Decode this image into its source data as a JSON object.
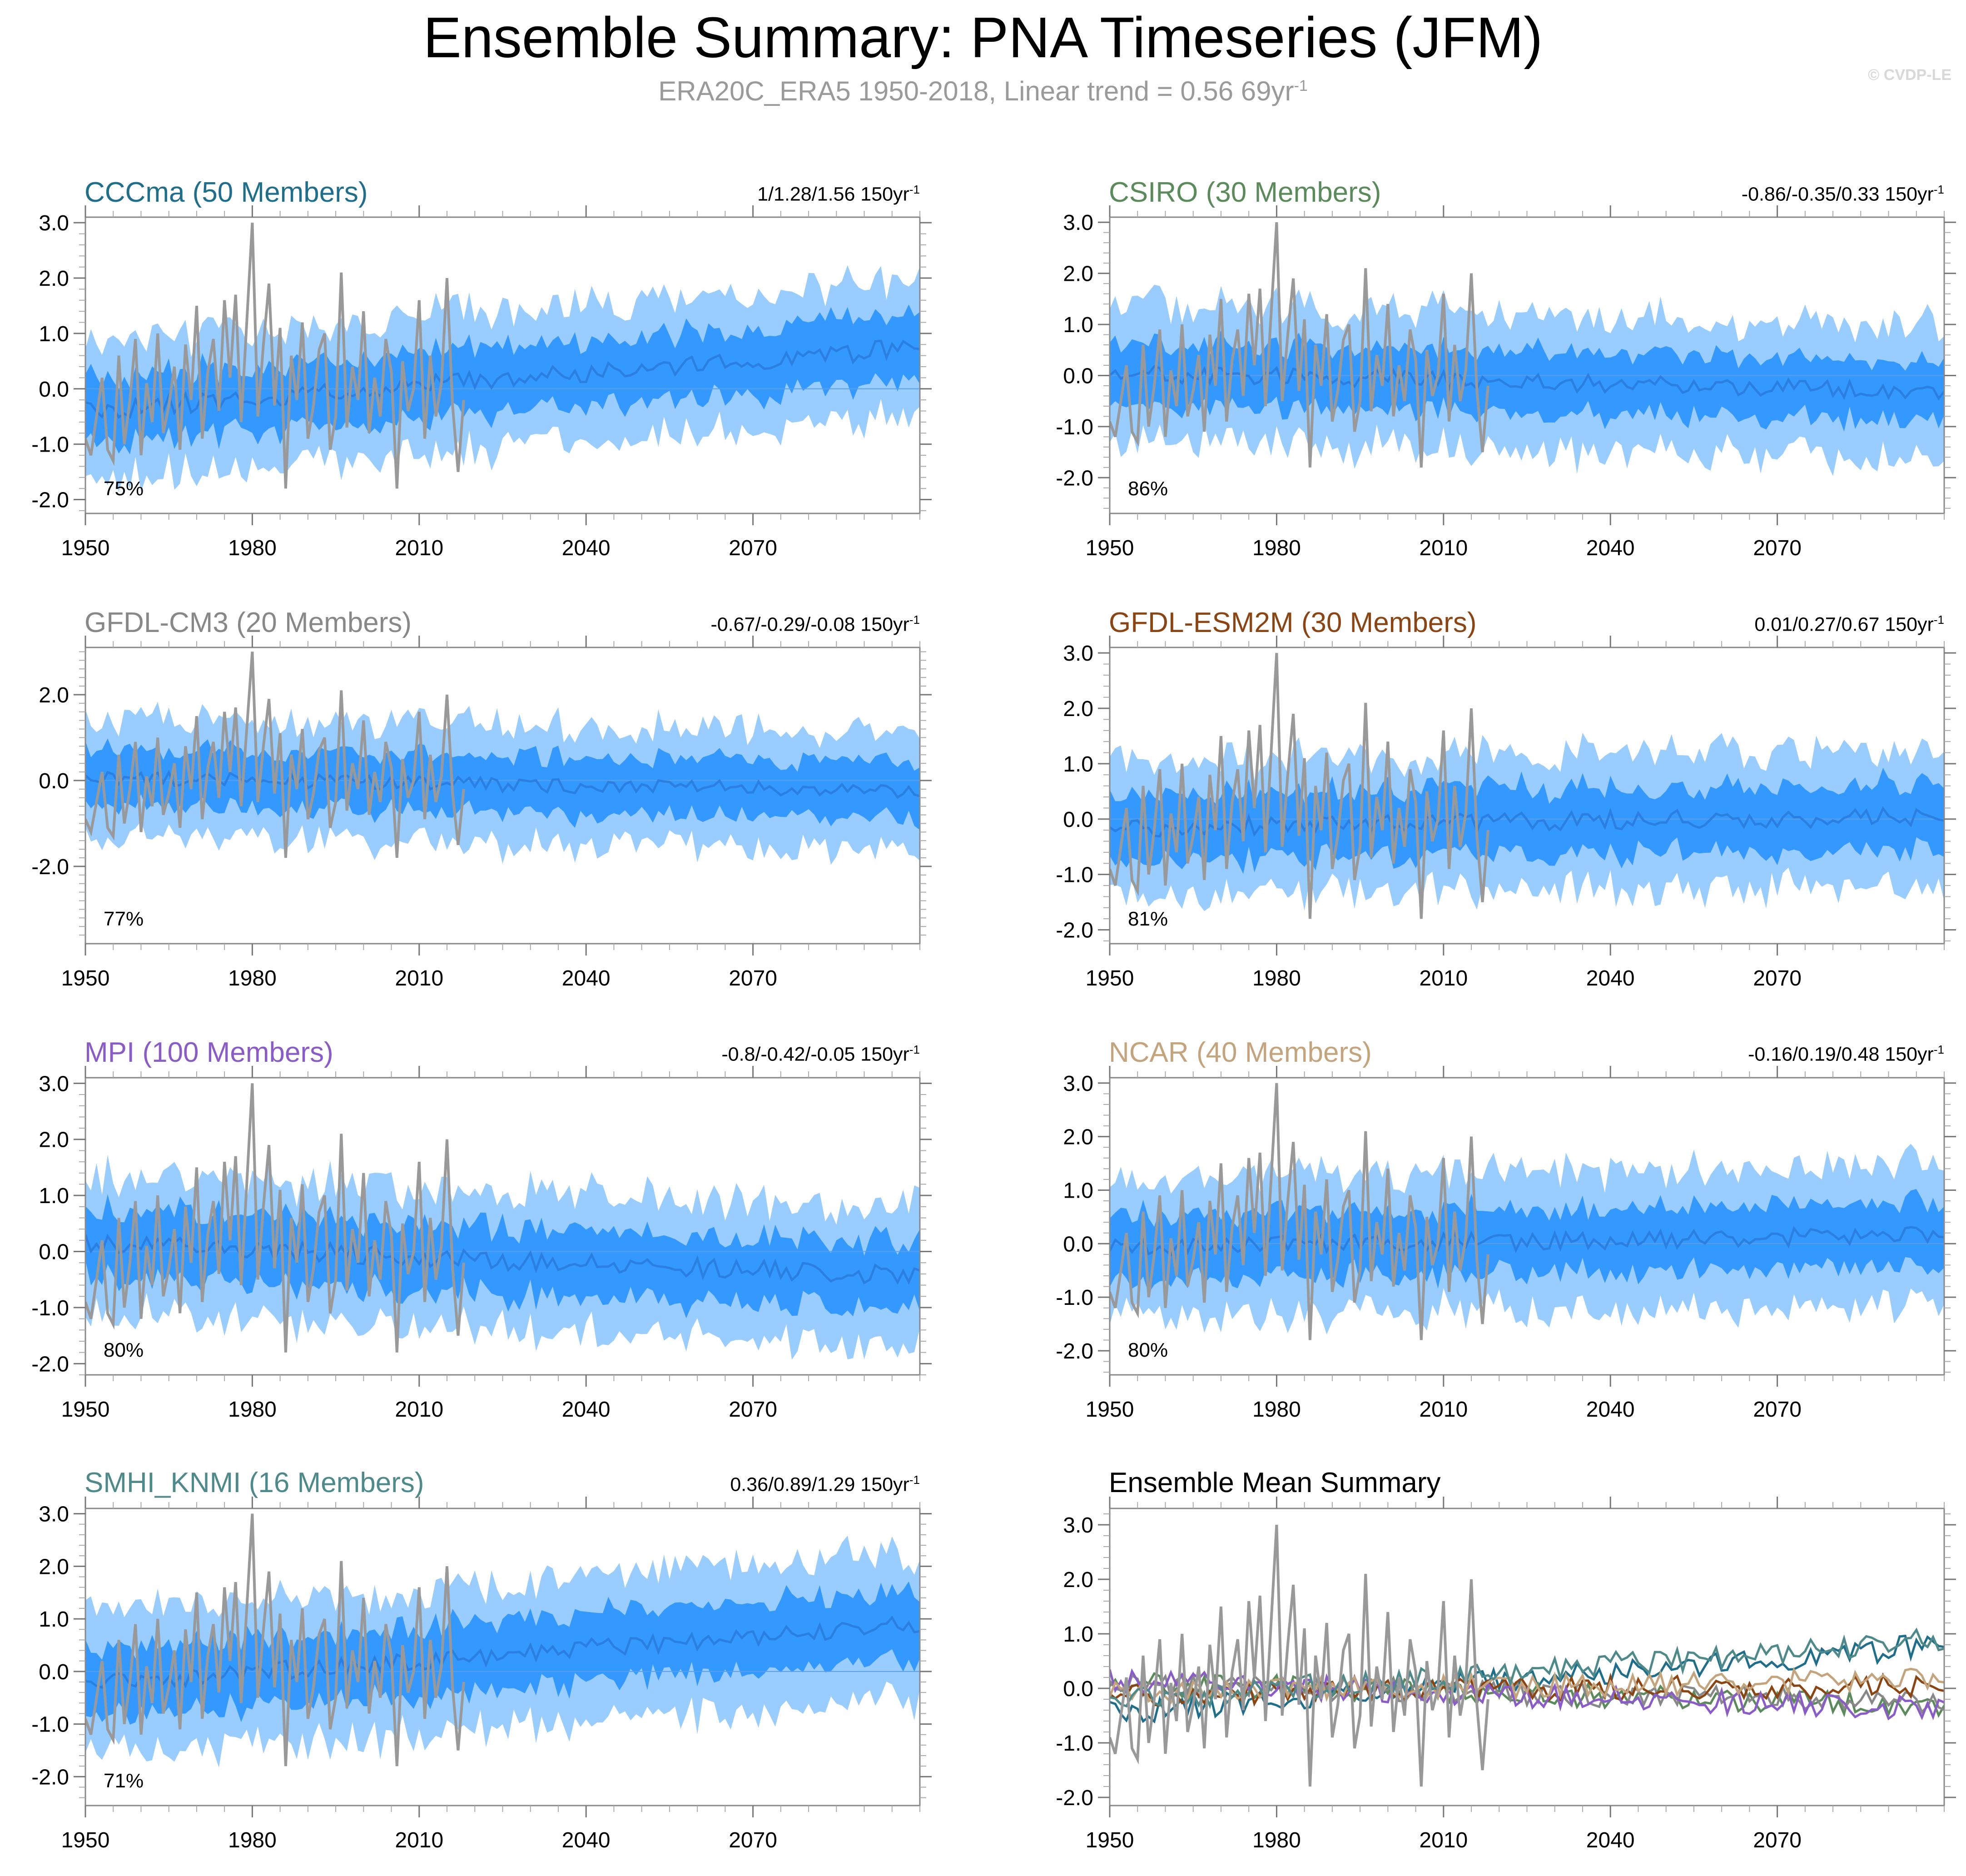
{
  "title": "Ensemble Summary: PNA Timeseries (JFM)",
  "subtitle": {
    "text": "ERA20C_ERA5 1950-2018, Linear trend = 0.56 69yr",
    "unit_exponent": "-1"
  },
  "watermark": "© CVDP-LE",
  "colors": {
    "inner_band": "#3399ff",
    "outer_band": "#99ccff",
    "ensemble_mean": "#2a7fe0",
    "observations": "#999999",
    "frame": "#888888"
  },
  "chart_data": [
    {
      "type": "area",
      "title": "CCCma (50 Members)",
      "title_color": "#1f6e8c",
      "trend_text": "1/1.28/1.56 150yr",
      "trend_exponent": "-1",
      "percent_label": "75%",
      "xlim": [
        1950,
        2100
      ],
      "ylim": [
        -2.25,
        3.1
      ],
      "yticks": [
        "3.0",
        "2.0",
        "1.0",
        "0.0",
        "-1.0",
        "-2.0"
      ],
      "ytick_values": [
        3,
        2,
        1,
        0,
        -1,
        -2
      ],
      "xticks": [
        "1950",
        "1980",
        "2010",
        "2040",
        "2070"
      ],
      "mean_start": -0.4,
      "mean_end": 0.75,
      "inner_half": 0.6,
      "outer_half": 1.2,
      "seed": 11
    },
    {
      "type": "area",
      "title": "CSIRO (30 Members)",
      "title_color": "#5b8a5b",
      "trend_text": "-0.86/-0.35/0.33 150yr",
      "trend_exponent": "-1",
      "percent_label": "86%",
      "xlim": [
        1950,
        2100
      ],
      "ylim": [
        -2.7,
        3.1
      ],
      "yticks": [
        "3.0",
        "2.0",
        "1.0",
        "0.0",
        "-1.0",
        "-2.0"
      ],
      "ytick_values": [
        3,
        2,
        1,
        0,
        -1,
        -2
      ],
      "xticks": [
        "1950",
        "1980",
        "2010",
        "2040",
        "2070"
      ],
      "mean_start": 0.05,
      "mean_end": -0.3,
      "inner_half": 0.6,
      "outer_half": 1.3,
      "seed": 23
    },
    {
      "type": "area",
      "title": "GFDL-CM3 (20 Members)",
      "title_color": "#888888",
      "trend_text": "-0.67/-0.29/-0.08 150yr",
      "trend_exponent": "-1",
      "percent_label": "77%",
      "xlim": [
        1950,
        2100
      ],
      "ylim": [
        -3.8,
        3.1
      ],
      "yticks": [
        "2.0",
        "0.0",
        "-2.0"
      ],
      "ytick_values": [
        2,
        0,
        -2
      ],
      "xticks": [
        "1950",
        "1980",
        "2010",
        "2040",
        "2070"
      ],
      "mean_start": 0.05,
      "mean_end": -0.25,
      "inner_half": 0.65,
      "outer_half": 1.35,
      "seed": 37
    },
    {
      "type": "area",
      "title": "GFDL-ESM2M (30 Members)",
      "title_color": "#8b4513",
      "trend_text": "0.01/0.27/0.67 150yr",
      "trend_exponent": "-1",
      "percent_label": "81%",
      "xlim": [
        1950,
        2100
      ],
      "ylim": [
        -2.25,
        3.1
      ],
      "yticks": [
        "3.0",
        "2.0",
        "1.0",
        "0.0",
        "-1.0",
        "-2.0"
      ],
      "ytick_values": [
        3,
        2,
        1,
        0,
        -1,
        -2
      ],
      "xticks": [
        "1950",
        "1980",
        "2010",
        "2040",
        "2070"
      ],
      "mean_start": -0.15,
      "mean_end": 0.05,
      "inner_half": 0.6,
      "outer_half": 1.2,
      "seed": 41
    },
    {
      "type": "area",
      "title": "MPI (100 Members)",
      "title_color": "#8a5cc8",
      "trend_text": "-0.8/-0.42/-0.05 150yr",
      "trend_exponent": "-1",
      "percent_label": "80%",
      "xlim": [
        1950,
        2100
      ],
      "ylim": [
        -2.2,
        3.1
      ],
      "yticks": [
        "3.0",
        "2.0",
        "1.0",
        "0.0",
        "-1.0",
        "-2.0"
      ],
      "ytick_values": [
        3,
        2,
        1,
        0,
        -1,
        -2
      ],
      "xticks": [
        "1950",
        "1980",
        "2010",
        "2040",
        "2070"
      ],
      "mean_start": 0.15,
      "mean_end": -0.45,
      "inner_half": 0.6,
      "outer_half": 1.2,
      "seed": 53
    },
    {
      "type": "area",
      "title": "NCAR (40 Members)",
      "title_color": "#c4a47c",
      "trend_text": "-0.16/0.19/0.48 150yr",
      "trend_exponent": "-1",
      "percent_label": "80%",
      "xlim": [
        1950,
        2100
      ],
      "ylim": [
        -2.45,
        3.1
      ],
      "yticks": [
        "3.0",
        "2.0",
        "1.0",
        "0.0",
        "-1.0",
        "-2.0"
      ],
      "ytick_values": [
        3,
        2,
        1,
        0,
        -1,
        -2
      ],
      "xticks": [
        "1950",
        "1980",
        "2010",
        "2040",
        "2070"
      ],
      "mean_start": -0.05,
      "mean_end": 0.15,
      "inner_half": 0.6,
      "outer_half": 1.25,
      "seed": 67
    },
    {
      "type": "area",
      "title": "SMHI_KNMI (16 Members)",
      "title_color": "#4f8a8b",
      "trend_text": "0.36/0.89/1.29 150yr",
      "trend_exponent": "-1",
      "percent_label": "71%",
      "xlim": [
        1950,
        2100
      ],
      "ylim": [
        -2.55,
        3.1
      ],
      "yticks": [
        "3.0",
        "2.0",
        "1.0",
        "0.0",
        "-1.0",
        "-2.0"
      ],
      "ytick_values": [
        3,
        2,
        1,
        0,
        -1,
        -2
      ],
      "xticks": [
        "1950",
        "1980",
        "2010",
        "2040",
        "2070"
      ],
      "mean_start": -0.25,
      "mean_end": 0.9,
      "inner_half": 0.65,
      "outer_half": 1.35,
      "seed": 79
    },
    {
      "type": "line",
      "title": "Ensemble Mean Summary",
      "title_color": "#000000",
      "xlim": [
        1950,
        2100
      ],
      "ylim": [
        -2.15,
        3.3
      ],
      "yticks": [
        "3.0",
        "2.0",
        "1.0",
        "0.0",
        "-1.0",
        "-2.0"
      ],
      "ytick_values": [
        3,
        2,
        1,
        0,
        -1,
        -2
      ],
      "xticks": [
        "1950",
        "1980",
        "2010",
        "2040",
        "2070"
      ],
      "series": [
        {
          "name": "CCCma",
          "color": "#1f6e8c",
          "start": -0.45,
          "end": 0.8,
          "seed": 11
        },
        {
          "name": "CSIRO",
          "color": "#5b8a5b",
          "start": 0.1,
          "end": -0.3,
          "seed": 23
        },
        {
          "name": "GFDL-CM3",
          "color": "#888888",
          "start": 0.05,
          "end": -0.25,
          "seed": 37
        },
        {
          "name": "GFDL-ESM2M",
          "color": "#8b4513",
          "start": -0.1,
          "end": 0.05,
          "seed": 41
        },
        {
          "name": "MPI",
          "color": "#8a5cc8",
          "start": 0.15,
          "end": -0.4,
          "seed": 53
        },
        {
          "name": "NCAR",
          "color": "#c4a47c",
          "start": -0.05,
          "end": 0.15,
          "seed": 67
        },
        {
          "name": "SMHI_KNMI",
          "color": "#4f8a8b",
          "start": -0.25,
          "end": 0.9,
          "seed": 79
        }
      ]
    }
  ],
  "observations": {
    "name": "ERA20C_ERA5",
    "years": [
      1950,
      2018
    ],
    "values": [
      -0.9,
      -1.2,
      -0.5,
      0.2,
      -1.1,
      -1.3,
      0.6,
      -1.0,
      -0.2,
      0.9,
      -1.2,
      0.1,
      -0.6,
      1.0,
      -0.8,
      -0.3,
      0.4,
      -1.1,
      0.8,
      -0.2,
      1.5,
      -0.9,
      0.3,
      0.9,
      -0.4,
      1.6,
      0.2,
      1.7,
      -0.6,
      1.2,
      3.0,
      -0.5,
      0.8,
      1.9,
      -0.3,
      1.1,
      -1.8,
      0.6,
      -0.2,
      1.2,
      -0.9,
      -0.3,
      0.7,
      1.0,
      -1.1,
      -0.5,
      2.1,
      -0.7,
      0.4,
      -0.2,
      1.4,
      -0.8,
      0.2,
      -0.5,
      0.9,
      0.3,
      -1.8,
      0.5,
      -0.4,
      0.0,
      1.6,
      -0.9,
      0.6,
      -0.5,
      0.1,
      2.0,
      -0.3,
      -1.5,
      -0.2
    ]
  }
}
